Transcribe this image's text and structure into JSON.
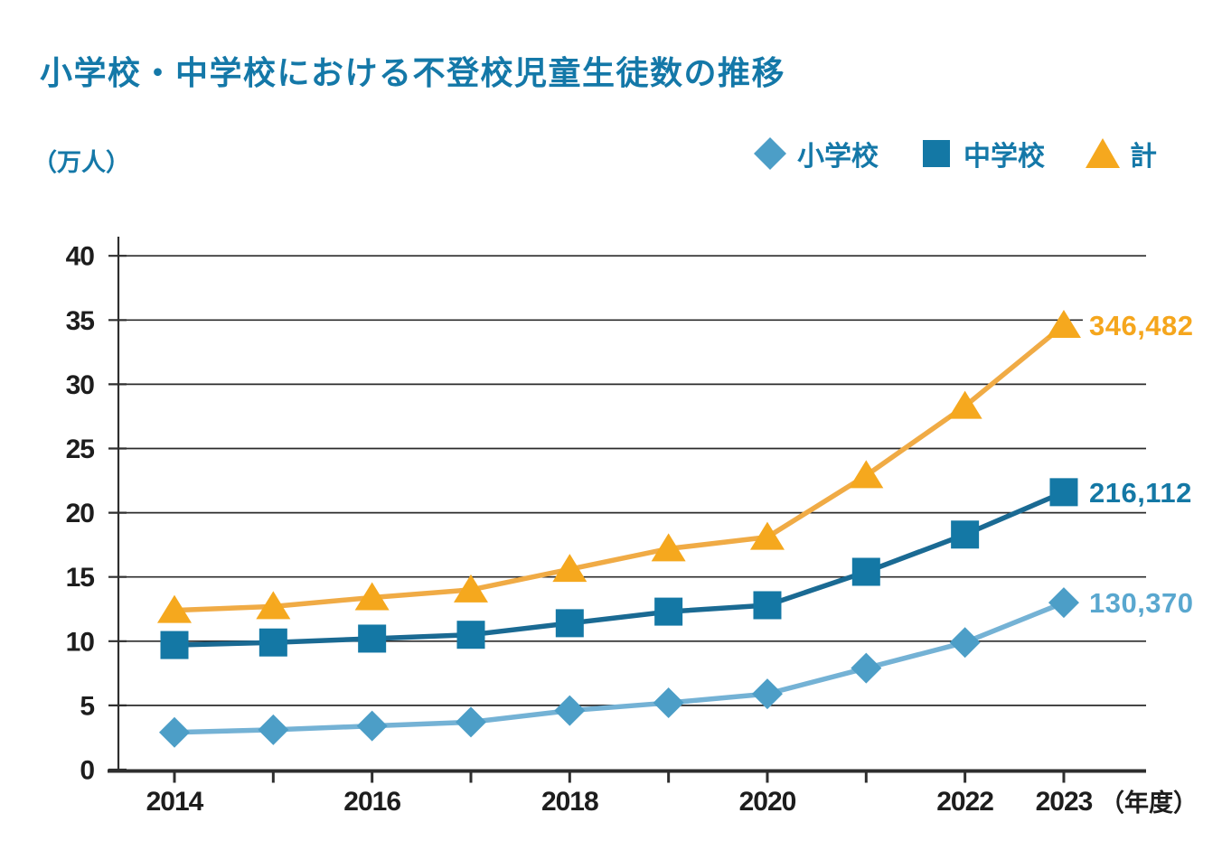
{
  "title": "小学校・中学校における不登校児童生徒数の推移",
  "unit_label": "（万人）",
  "x_axis_suffix": "（年度）",
  "colors": {
    "background": "#ffffff",
    "title_text": "#1478A8",
    "legend_text": "#1478A8",
    "axis_text": "#1d1d1d",
    "gridline": "#2b2b2b",
    "axis_line": "#2e2e2e"
  },
  "legend": {
    "items": [
      {
        "series_id": "elementary",
        "label": "小学校",
        "marker": "diamond",
        "color": "#4C9EC7"
      },
      {
        "series_id": "junior_high",
        "label": "中学校",
        "marker": "square",
        "color": "#1478A5"
      },
      {
        "series_id": "total",
        "label": "計",
        "marker": "triangle",
        "color": "#F5A81E"
      }
    ]
  },
  "chart_data": {
    "type": "line",
    "title": "小学校・中学校における不登校児童生徒数の推移",
    "ylabel": "（万人）",
    "xlabel": "（年度）",
    "unit": "万人 (ten-thousands of students)",
    "grid": "horizontal",
    "legend_position": "top-right",
    "ylim": [
      0,
      40
    ],
    "yticks": [
      0,
      5,
      10,
      15,
      20,
      25,
      30,
      35,
      40
    ],
    "x": [
      2014,
      2015,
      2016,
      2017,
      2018,
      2019,
      2020,
      2021,
      2022,
      2023
    ],
    "x_labeled_years": [
      "2014",
      "2016",
      "2018",
      "2020",
      "2022",
      "2023"
    ],
    "series": [
      {
        "id": "elementary",
        "name": "小学校",
        "marker": "diamond",
        "values": [
          2.9,
          3.1,
          3.4,
          3.7,
          4.6,
          5.2,
          5.9,
          7.9,
          9.9,
          13.0
        ],
        "end_label": "130,370",
        "line_color": "#74B2D5",
        "marker_color": "#4C9EC7",
        "label_color": "#59A7CF"
      },
      {
        "id": "junior_high",
        "name": "中学校",
        "marker": "square",
        "values": [
          9.7,
          9.9,
          10.2,
          10.5,
          11.4,
          12.3,
          12.8,
          15.4,
          18.3,
          21.6
        ],
        "end_label": "216,112",
        "line_color": "#1A6A93",
        "marker_color": "#1478A5",
        "label_color": "#1478A5"
      },
      {
        "id": "total",
        "name": "計",
        "marker": "triangle",
        "values": [
          12.4,
          12.7,
          13.4,
          14.0,
          15.6,
          17.2,
          18.1,
          22.9,
          28.3,
          34.6
        ],
        "end_label": "346,482",
        "line_color": "#F0AB45",
        "marker_color": "#F5A81E",
        "label_color": "#F5A61D"
      }
    ]
  }
}
